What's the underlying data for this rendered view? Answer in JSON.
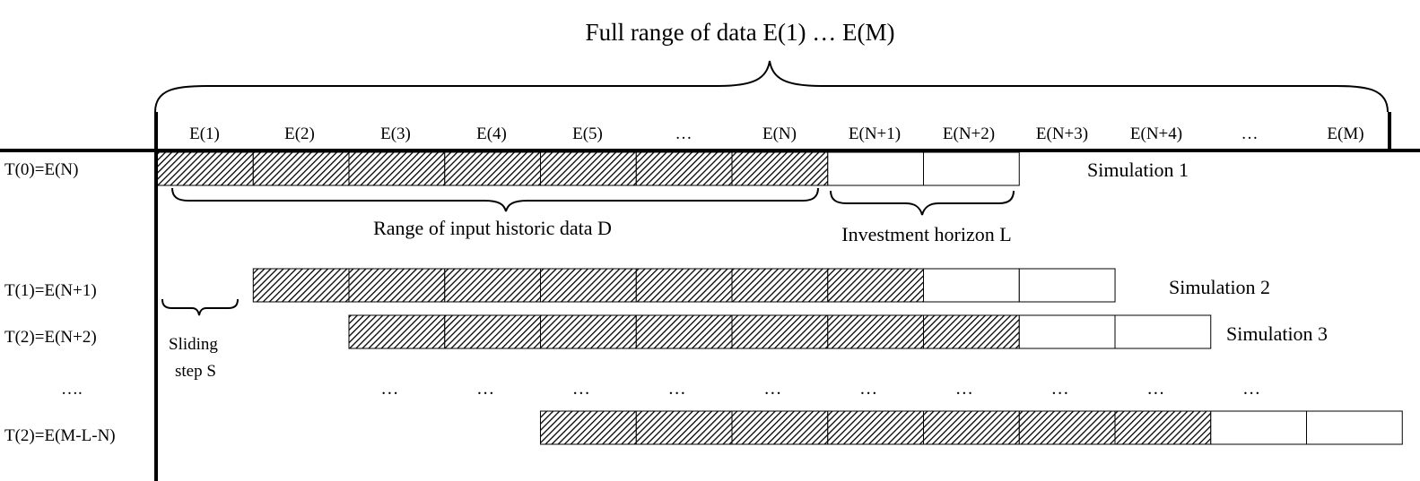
{
  "title": "Full range of data E(1) … E(M)",
  "columns": [
    "E(1)",
    "E(2)",
    "E(3)",
    "E(4)",
    "E(5)",
    "…",
    "E(N)",
    "E(N+1)",
    "E(N+2)",
    "E(N+3)",
    "E(N+4)",
    "…",
    "E(M)"
  ],
  "rows": [
    {
      "label": "T(0)=E(N)",
      "start": 0,
      "hist": 7,
      "horizon": 2,
      "simulation": "Simulation 1"
    },
    {
      "label": "T(1)=E(N+1)",
      "start": 1,
      "hist": 7,
      "horizon": 2,
      "simulation": "Simulation 2"
    },
    {
      "label": "T(2)=E(N+2)",
      "start": 2,
      "hist": 7,
      "horizon": 2,
      "simulation": "Simulation 3"
    },
    {
      "label": "….",
      "start": null,
      "hist": 0,
      "horizon": 0,
      "simulation": ""
    },
    {
      "label": "T(2)=E(M-L-N)",
      "start": 4,
      "hist": 7,
      "horizon": 2,
      "simulation": ""
    }
  ],
  "ellipsis_row": {
    "glyph": "…",
    "columns": [
      2,
      3,
      4,
      5,
      6,
      7,
      8,
      9,
      10,
      11
    ]
  },
  "labels": {
    "historic": "Range of input historic data D",
    "horizon": "Investment horizon L",
    "sliding_1": "Sliding",
    "sliding_2": "step S"
  }
}
